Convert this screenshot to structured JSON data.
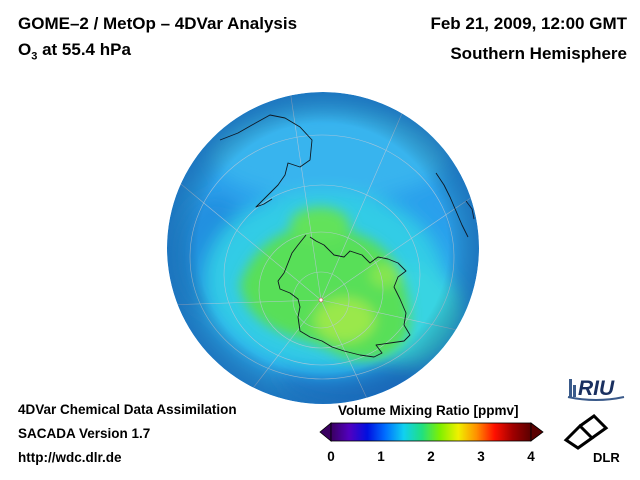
{
  "header": {
    "title": "GOME–2 / MetOp – 4DVar Analysis",
    "species_prefix": "O",
    "species_subscript": "3",
    "pressure_text": " at 55.4 hPa",
    "date": "Feb 21, 2009, 12:00 GMT",
    "region": "Southern Hemisphere"
  },
  "footer": {
    "line1": "4DVar Chemical Data Assimilation",
    "line2": "SACADA Version 1.7",
    "line3": "http://wdc.dlr.de"
  },
  "colorbar": {
    "title": "Volume Mixing Ratio [ppmv]",
    "ticks": [
      "0",
      "1",
      "2",
      "3",
      "4"
    ],
    "min": 0,
    "max": 4,
    "colors": [
      "#3a0060",
      "#5200c0",
      "#0010e0",
      "#0070ff",
      "#10d0f0",
      "#20e080",
      "#80f000",
      "#f0f000",
      "#ff9000",
      "#ff1000",
      "#a00000",
      "#5a0000"
    ]
  },
  "map": {
    "projection": "orthographic",
    "pole": "south",
    "field_colors": {
      "base": "#2aa0ec",
      "cyan": "#30d0e8",
      "green": "#58df58",
      "yellowgreen": "#9ae84c"
    }
  },
  "logos": {
    "riu": "RIU",
    "dlr": "DLR"
  }
}
